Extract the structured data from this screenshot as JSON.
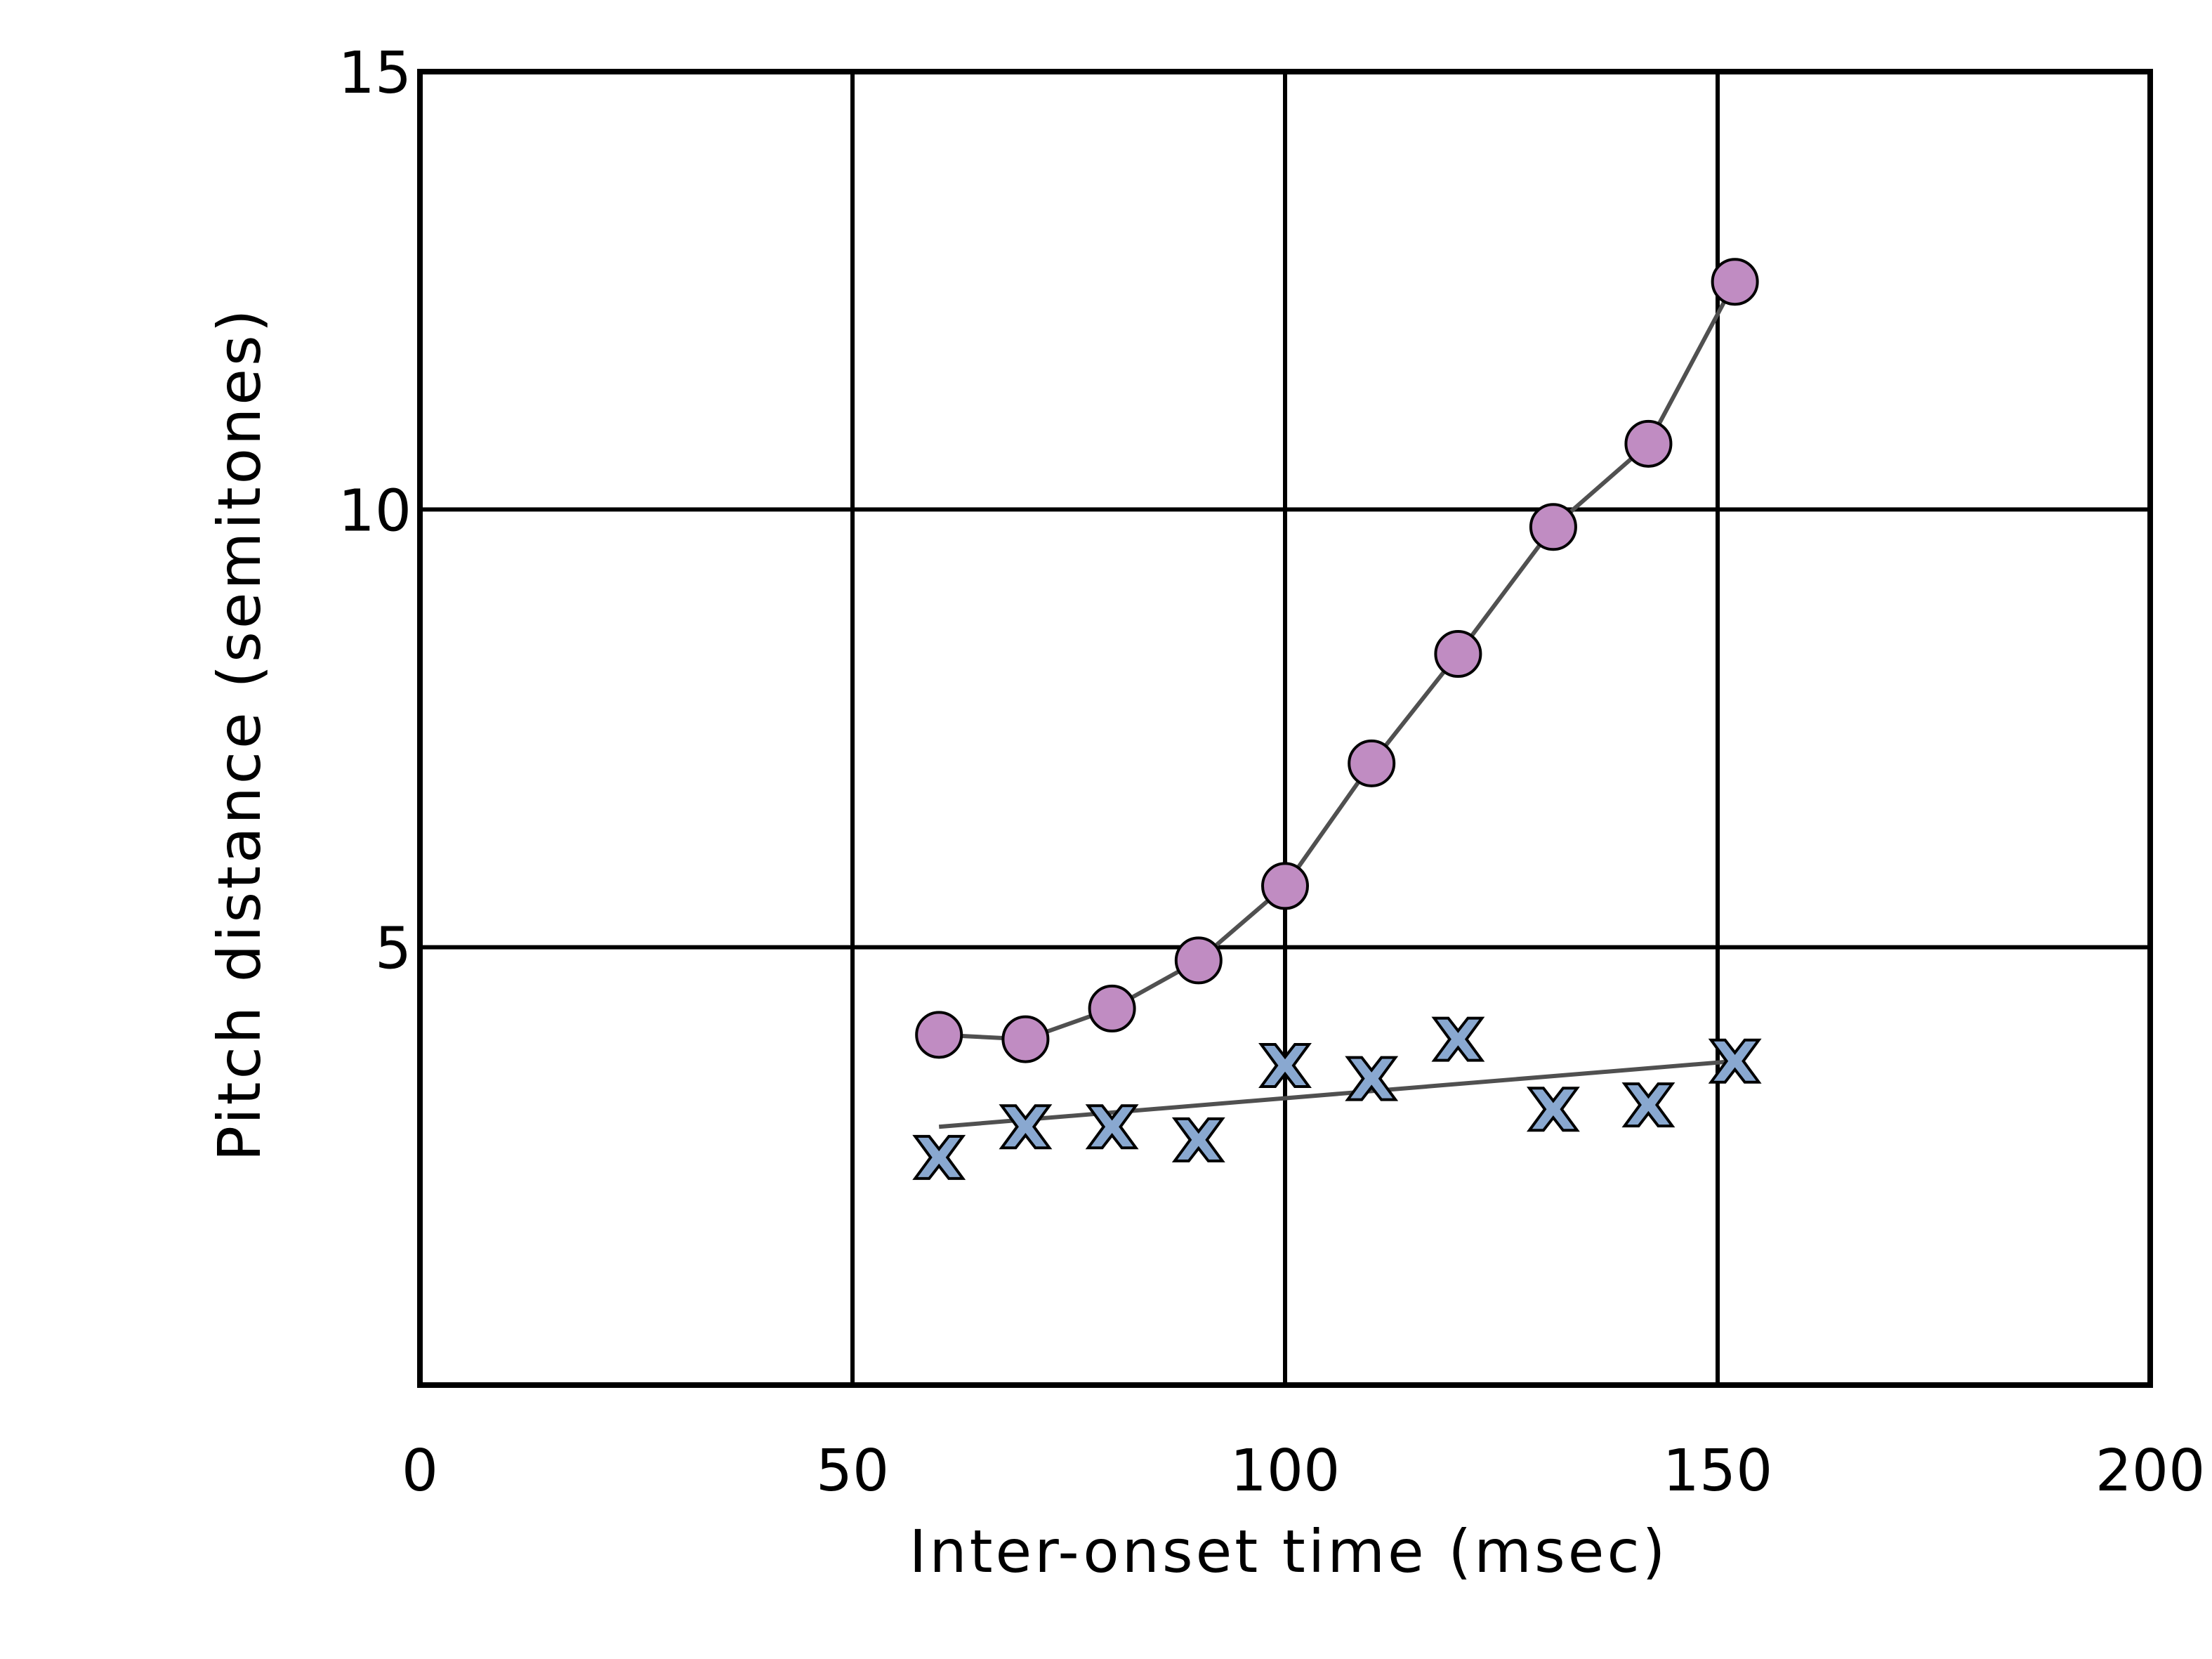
{
  "chart_data": {
    "type": "scatter",
    "title": "",
    "xlabel": "Inter-onset time (msec)",
    "ylabel": "Pitch distance (semitones)",
    "xlim": [
      0,
      200
    ],
    "ylim": [
      0,
      15
    ],
    "x_ticks": [
      0,
      50,
      100,
      150,
      200
    ],
    "y_ticks": [
      5,
      10,
      15
    ],
    "x_tick_labels": [
      "0",
      "50",
      "100",
      "150",
      "200"
    ],
    "y_tick_labels": [
      "5",
      "10",
      "15"
    ],
    "grid": true,
    "legend": "none",
    "series": [
      {
        "marker": "circle",
        "color": "#c08cc2",
        "line_color": "#505050",
        "x": [
          60,
          70,
          80,
          90,
          100,
          110,
          120,
          131,
          142,
          152
        ],
        "y": [
          4.0,
          3.95,
          4.3,
          4.85,
          5.7,
          7.1,
          8.35,
          9.8,
          10.75,
          12.6
        ]
      },
      {
        "marker": "x",
        "color": "#89a8d0",
        "line_color": "#505050",
        "x": [
          60,
          70,
          80,
          90,
          100,
          110,
          120,
          131,
          142,
          152
        ],
        "y": [
          2.6,
          2.95,
          2.95,
          2.8,
          3.65,
          3.5,
          3.95,
          3.15,
          3.2,
          3.7
        ],
        "trend": {
          "x": [
            60,
            152
          ],
          "y": [
            2.95,
            3.7
          ]
        }
      }
    ]
  }
}
